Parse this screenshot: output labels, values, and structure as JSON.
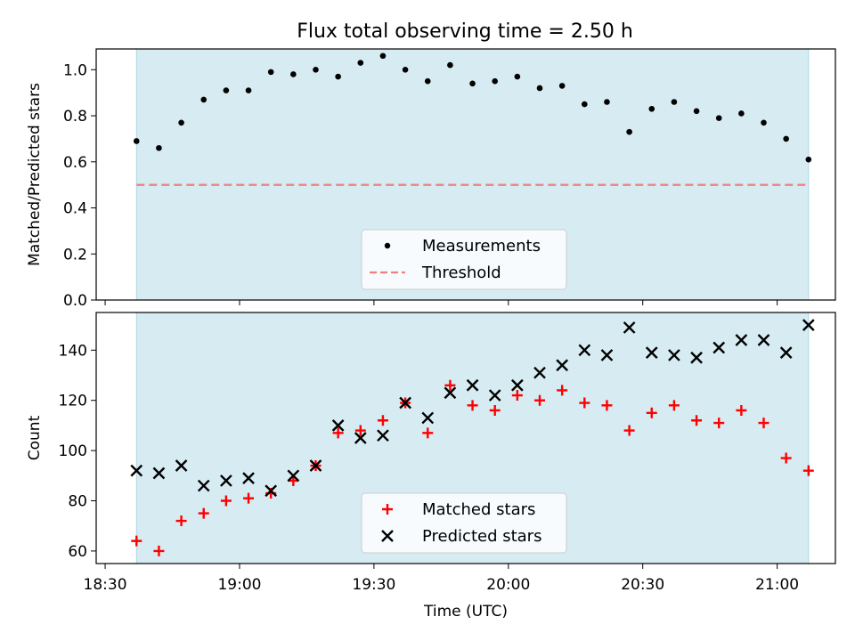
{
  "title": "Flux total observing time = 2.50 h",
  "colors": {
    "shade": "#add8e6",
    "measurement": "#000000",
    "threshold": "#f08080",
    "matched": "#ff0000",
    "predicted": "#000000"
  },
  "chart_data": [
    {
      "type": "scatter",
      "title": "Flux total observing time = 2.50 h",
      "xlabel": "",
      "ylabel": "Matched/Predicted stars",
      "xlim": [
        "18:28",
        "21:13"
      ],
      "ylim": [
        0,
        1.09
      ],
      "yticks": [
        "0.0",
        "0.2",
        "0.4",
        "0.6",
        "0.8",
        "1.0"
      ],
      "grid": false,
      "shaded_interval": [
        "18:37",
        "21:07"
      ],
      "legend_location": "lower center",
      "series": [
        {
          "name": "Measurements",
          "marker": "dot",
          "x": [
            "18:37",
            "18:42",
            "18:47",
            "18:52",
            "18:57",
            "19:02",
            "19:07",
            "19:12",
            "19:17",
            "19:22",
            "19:27",
            "19:32",
            "19:37",
            "19:42",
            "19:47",
            "19:52",
            "19:57",
            "20:02",
            "20:07",
            "20:12",
            "20:17",
            "20:22",
            "20:27",
            "20:32",
            "20:37",
            "20:42",
            "20:47",
            "20:52",
            "20:57",
            "21:02",
            "21:07"
          ],
          "y": [
            0.69,
            0.66,
            0.77,
            0.87,
            0.91,
            0.91,
            0.99,
            0.98,
            1.0,
            0.97,
            1.03,
            1.06,
            1.0,
            0.95,
            1.02,
            0.94,
            0.95,
            0.97,
            0.92,
            0.93,
            0.85,
            0.86,
            0.73,
            0.83,
            0.86,
            0.82,
            0.79,
            0.81,
            0.77,
            0.7,
            0.61
          ]
        },
        {
          "name": "Threshold",
          "style": "dashed",
          "x": [
            "18:37",
            "21:07"
          ],
          "y": [
            0.5,
            0.5
          ]
        }
      ]
    },
    {
      "type": "scatter",
      "xlabel": "Time (UTC)",
      "ylabel": "Count",
      "xlim": [
        "18:28",
        "21:13"
      ],
      "ylim": [
        55,
        155
      ],
      "xticks": [
        "18:30",
        "19:00",
        "19:30",
        "20:00",
        "20:30",
        "21:00"
      ],
      "yticks": [
        "60",
        "80",
        "100",
        "120",
        "140"
      ],
      "grid": false,
      "shaded_interval": [
        "18:37",
        "21:07"
      ],
      "legend_location": "lower center",
      "x": [
        "18:37",
        "18:42",
        "18:47",
        "18:52",
        "18:57",
        "19:02",
        "19:07",
        "19:12",
        "19:17",
        "19:22",
        "19:27",
        "19:32",
        "19:37",
        "19:42",
        "19:47",
        "19:52",
        "19:57",
        "20:02",
        "20:07",
        "20:12",
        "20:17",
        "20:22",
        "20:27",
        "20:32",
        "20:37",
        "20:42",
        "20:47",
        "20:52",
        "20:57",
        "21:02",
        "21:07"
      ],
      "series": [
        {
          "name": "Matched stars",
          "marker": "plus",
          "values": [
            64,
            60,
            72,
            75,
            80,
            81,
            83,
            88,
            94,
            107,
            108,
            112,
            119,
            107,
            126,
            118,
            116,
            122,
            120,
            124,
            119,
            118,
            108,
            115,
            118,
            112,
            111,
            116,
            111,
            97,
            92
          ]
        },
        {
          "name": "Predicted stars",
          "marker": "x",
          "values": [
            92,
            91,
            94,
            86,
            88,
            89,
            84,
            90,
            94,
            110,
            105,
            106,
            119,
            113,
            123,
            126,
            122,
            126,
            131,
            134,
            140,
            138,
            149,
            139,
            138,
            137,
            141,
            144,
            144,
            139,
            150
          ]
        }
      ]
    }
  ]
}
